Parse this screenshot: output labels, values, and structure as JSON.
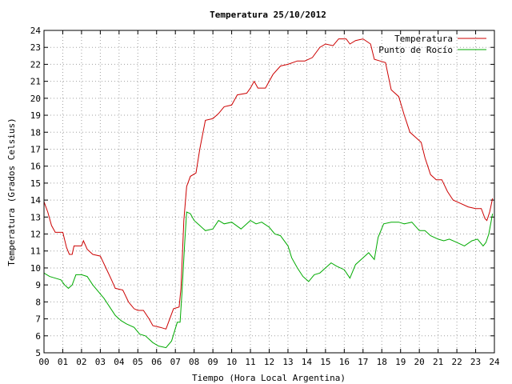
{
  "chart_data": {
    "type": "line",
    "title": "Temperatura 25/10/2012",
    "xlabel": "Tiempo (Hora Local Argentina)",
    "ylabel": "Temperatura (Grados Celsius)",
    "xlim": [
      0,
      24
    ],
    "ylim": [
      5,
      24
    ],
    "x_tick_labels": [
      "00",
      "01",
      "02",
      "03",
      "04",
      "05",
      "06",
      "07",
      "08",
      "09",
      "10",
      "11",
      "12",
      "13",
      "14",
      "15",
      "16",
      "17",
      "18",
      "19",
      "20",
      "21",
      "22",
      "23",
      "24"
    ],
    "y_tick_labels": [
      "5",
      "6",
      "7",
      "8",
      "9",
      "10",
      "11",
      "12",
      "13",
      "14",
      "15",
      "16",
      "17",
      "18",
      "19",
      "20",
      "21",
      "22",
      "23",
      "24"
    ],
    "grid": true,
    "legend_position": "top-right",
    "series": [
      {
        "name": "Temperatura",
        "color": "#cc0000",
        "points": [
          [
            0.0,
            13.9
          ],
          [
            0.2,
            13.3
          ],
          [
            0.4,
            12.5
          ],
          [
            0.6,
            12.1
          ],
          [
            1.0,
            12.1
          ],
          [
            1.2,
            11.2
          ],
          [
            1.35,
            10.8
          ],
          [
            1.5,
            10.8
          ],
          [
            1.6,
            11.3
          ],
          [
            2.0,
            11.3
          ],
          [
            2.1,
            11.6
          ],
          [
            2.3,
            11.1
          ],
          [
            2.6,
            10.8
          ],
          [
            3.0,
            10.7
          ],
          [
            3.3,
            10.0
          ],
          [
            3.6,
            9.3
          ],
          [
            3.8,
            8.8
          ],
          [
            4.2,
            8.7
          ],
          [
            4.5,
            8.0
          ],
          [
            4.8,
            7.6
          ],
          [
            5.0,
            7.5
          ],
          [
            5.3,
            7.5
          ],
          [
            5.6,
            7.0
          ],
          [
            5.8,
            6.6
          ],
          [
            6.2,
            6.5
          ],
          [
            6.5,
            6.4
          ],
          [
            6.7,
            7.0
          ],
          [
            6.9,
            7.6
          ],
          [
            7.2,
            7.7
          ],
          [
            7.3,
            8.8
          ],
          [
            7.45,
            12.8
          ],
          [
            7.6,
            14.8
          ],
          [
            7.8,
            15.4
          ],
          [
            8.1,
            15.6
          ],
          [
            8.3,
            17.0
          ],
          [
            8.6,
            18.7
          ],
          [
            9.0,
            18.8
          ],
          [
            9.3,
            19.1
          ],
          [
            9.6,
            19.5
          ],
          [
            10.0,
            19.6
          ],
          [
            10.3,
            20.2
          ],
          [
            10.8,
            20.3
          ],
          [
            11.0,
            20.6
          ],
          [
            11.2,
            21.0
          ],
          [
            11.4,
            20.6
          ],
          [
            11.8,
            20.6
          ],
          [
            12.2,
            21.4
          ],
          [
            12.6,
            21.9
          ],
          [
            13.0,
            22.0
          ],
          [
            13.5,
            22.2
          ],
          [
            13.9,
            22.2
          ],
          [
            14.3,
            22.4
          ],
          [
            14.7,
            23.0
          ],
          [
            15.0,
            23.2
          ],
          [
            15.4,
            23.1
          ],
          [
            15.7,
            23.5
          ],
          [
            16.1,
            23.5
          ],
          [
            16.3,
            23.2
          ],
          [
            16.6,
            23.4
          ],
          [
            17.0,
            23.5
          ],
          [
            17.4,
            23.2
          ],
          [
            17.6,
            22.3
          ],
          [
            17.9,
            22.2
          ],
          [
            18.2,
            22.1
          ],
          [
            18.5,
            20.5
          ],
          [
            18.9,
            20.1
          ],
          [
            19.2,
            19.0
          ],
          [
            19.5,
            18.0
          ],
          [
            19.8,
            17.7
          ],
          [
            20.1,
            17.4
          ],
          [
            20.3,
            16.5
          ],
          [
            20.6,
            15.5
          ],
          [
            20.9,
            15.2
          ],
          [
            21.2,
            15.2
          ],
          [
            21.5,
            14.5
          ],
          [
            21.8,
            14.0
          ],
          [
            22.2,
            13.8
          ],
          [
            22.6,
            13.6
          ],
          [
            23.0,
            13.5
          ],
          [
            23.3,
            13.5
          ],
          [
            23.5,
            12.9
          ],
          [
            23.6,
            12.8
          ],
          [
            23.75,
            13.3
          ],
          [
            23.9,
            14.1
          ]
        ]
      },
      {
        "name": "Punto de Rocío",
        "color": "#00aa00",
        "points": [
          [
            0.0,
            9.7
          ],
          [
            0.3,
            9.5
          ],
          [
            0.6,
            9.4
          ],
          [
            0.9,
            9.3
          ],
          [
            1.1,
            9.0
          ],
          [
            1.3,
            8.8
          ],
          [
            1.5,
            9.0
          ],
          [
            1.7,
            9.6
          ],
          [
            2.0,
            9.6
          ],
          [
            2.3,
            9.5
          ],
          [
            2.6,
            9.0
          ],
          [
            2.9,
            8.6
          ],
          [
            3.2,
            8.2
          ],
          [
            3.5,
            7.7
          ],
          [
            3.8,
            7.2
          ],
          [
            4.1,
            6.9
          ],
          [
            4.4,
            6.7
          ],
          [
            4.8,
            6.5
          ],
          [
            5.1,
            6.1
          ],
          [
            5.4,
            6.0
          ],
          [
            5.8,
            5.6
          ],
          [
            6.1,
            5.4
          ],
          [
            6.5,
            5.3
          ],
          [
            6.8,
            5.7
          ],
          [
            7.1,
            6.8
          ],
          [
            7.25,
            6.8
          ],
          [
            7.35,
            8.5
          ],
          [
            7.5,
            11.5
          ],
          [
            7.6,
            13.3
          ],
          [
            7.8,
            13.2
          ],
          [
            8.0,
            12.8
          ],
          [
            8.3,
            12.5
          ],
          [
            8.6,
            12.2
          ],
          [
            9.0,
            12.3
          ],
          [
            9.3,
            12.8
          ],
          [
            9.6,
            12.6
          ],
          [
            10.0,
            12.7
          ],
          [
            10.5,
            12.3
          ],
          [
            11.0,
            12.8
          ],
          [
            11.3,
            12.6
          ],
          [
            11.6,
            12.7
          ],
          [
            12.0,
            12.4
          ],
          [
            12.3,
            12.0
          ],
          [
            12.6,
            11.9
          ],
          [
            13.0,
            11.3
          ],
          [
            13.2,
            10.6
          ],
          [
            13.5,
            10.0
          ],
          [
            13.8,
            9.5
          ],
          [
            14.1,
            9.2
          ],
          [
            14.4,
            9.6
          ],
          [
            14.7,
            9.7
          ],
          [
            15.0,
            10.0
          ],
          [
            15.3,
            10.3
          ],
          [
            15.6,
            10.1
          ],
          [
            16.0,
            9.9
          ],
          [
            16.3,
            9.4
          ],
          [
            16.6,
            10.2
          ],
          [
            17.0,
            10.6
          ],
          [
            17.3,
            10.9
          ],
          [
            17.6,
            10.5
          ],
          [
            17.8,
            11.8
          ],
          [
            18.1,
            12.6
          ],
          [
            18.5,
            12.7
          ],
          [
            18.9,
            12.7
          ],
          [
            19.2,
            12.6
          ],
          [
            19.6,
            12.7
          ],
          [
            20.0,
            12.2
          ],
          [
            20.3,
            12.2
          ],
          [
            20.6,
            11.9
          ],
          [
            21.0,
            11.7
          ],
          [
            21.3,
            11.6
          ],
          [
            21.6,
            11.7
          ],
          [
            22.0,
            11.5
          ],
          [
            22.4,
            11.3
          ],
          [
            22.8,
            11.6
          ],
          [
            23.1,
            11.7
          ],
          [
            23.4,
            11.3
          ],
          [
            23.55,
            11.5
          ],
          [
            23.7,
            12.0
          ],
          [
            23.9,
            13.2
          ]
        ]
      }
    ]
  }
}
